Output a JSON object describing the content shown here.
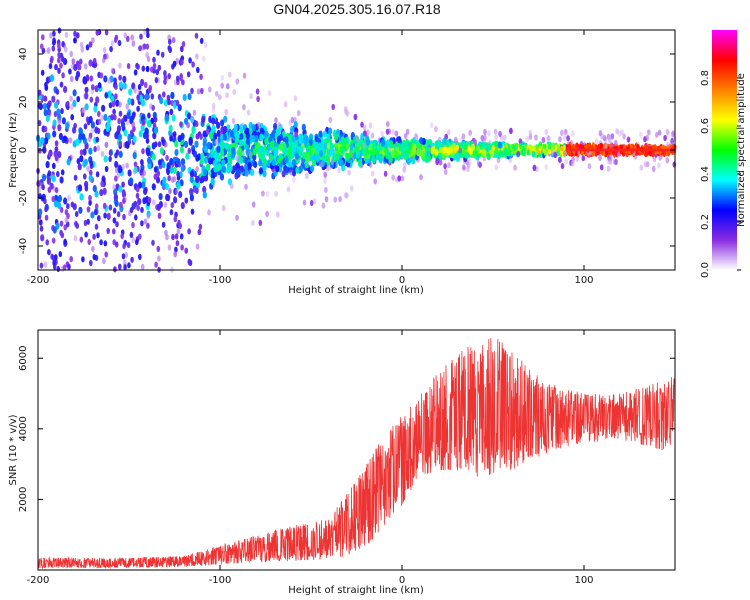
{
  "title": "GN04.2025.305.16.07.R18",
  "chart_data": [
    {
      "type": "heatmap",
      "name": "spectrogram",
      "xlabel": "Height of straight line (km)",
      "ylabel": "Frequency (Hz)",
      "xlim": [
        -200,
        150
      ],
      "ylim": [
        -50,
        50
      ],
      "x_ticks": [
        -200,
        -100,
        0,
        100
      ],
      "y_ticks": [
        -40,
        -20,
        0,
        20,
        40
      ],
      "colorbar": {
        "label": "Normalized spectral amplitude",
        "range": [
          0,
          1
        ],
        "ticks": [
          "0.0",
          "0.2",
          "0.4",
          "0.6",
          "0.8"
        ],
        "colors": [
          "#ffffff",
          "#8a2be2",
          "#0000ff",
          "#00ffff",
          "#00ff00",
          "#ffff00",
          "#ff8000",
          "#ff0000",
          "#ff00ff"
        ]
      },
      "band_center_hz": 0,
      "band_halfwidth_profile": [
        {
          "x": -200,
          "halfwidth": 48
        },
        {
          "x": -120,
          "halfwidth": 30
        },
        {
          "x": -100,
          "halfwidth": 14
        },
        {
          "x": -50,
          "halfwidth": 10
        },
        {
          "x": 0,
          "halfwidth": 5
        },
        {
          "x": 50,
          "halfwidth": 3
        },
        {
          "x": 150,
          "halfwidth": 2
        }
      ]
    },
    {
      "type": "line",
      "name": "snr",
      "xlabel": "Height of straight line (km)",
      "ylabel": "SNR (10 * v/v)",
      "xlim": [
        -200,
        150
      ],
      "ylim": [
        0,
        6800
      ],
      "x_ticks": [
        -200,
        -100,
        0,
        100
      ],
      "y_ticks": [
        2000,
        4000,
        6000
      ],
      "series": [
        {
          "name": "SNR",
          "color": "#ee3333",
          "envelope": [
            {
              "x": -200,
              "low": 50,
              "high": 350
            },
            {
              "x": -150,
              "low": 60,
              "high": 350
            },
            {
              "x": -120,
              "low": 80,
              "high": 400
            },
            {
              "x": -100,
              "low": 150,
              "high": 700
            },
            {
              "x": -80,
              "low": 200,
              "high": 1000
            },
            {
              "x": -60,
              "low": 250,
              "high": 1300
            },
            {
              "x": -40,
              "low": 300,
              "high": 1500
            },
            {
              "x": -30,
              "low": 400,
              "high": 2200
            },
            {
              "x": -20,
              "low": 600,
              "high": 3000
            },
            {
              "x": -10,
              "low": 1200,
              "high": 3800
            },
            {
              "x": 0,
              "low": 1800,
              "high": 4400
            },
            {
              "x": 10,
              "low": 2600,
              "high": 5000
            },
            {
              "x": 20,
              "low": 2800,
              "high": 5600
            },
            {
              "x": 30,
              "low": 2800,
              "high": 6200
            },
            {
              "x": 50,
              "low": 2500,
              "high": 6700
            },
            {
              "x": 60,
              "low": 2800,
              "high": 6300
            },
            {
              "x": 80,
              "low": 3300,
              "high": 5300
            },
            {
              "x": 100,
              "low": 3600,
              "high": 5000
            },
            {
              "x": 120,
              "low": 3700,
              "high": 5000
            },
            {
              "x": 150,
              "low": 3300,
              "high": 5500
            }
          ]
        }
      ]
    }
  ]
}
